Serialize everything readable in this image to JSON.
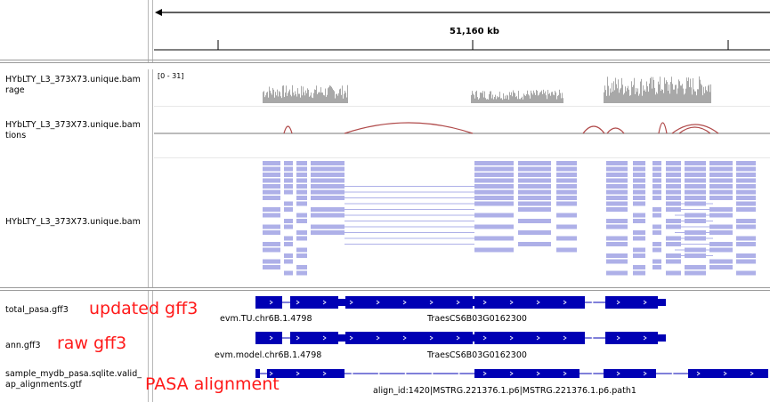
{
  "ruler": {
    "position_label": "51,160 kb"
  },
  "tracks": {
    "coverage": {
      "name_line1": "HYbLTY_L3_373X73.unique.bam",
      "name_line2": "rage",
      "range": "[0 - 31]"
    },
    "junctions": {
      "name_line1": "HYbLTY_L3_373X73.unique.bam",
      "name_line2": "tions"
    },
    "alignments": {
      "name_line1": "HYbLTY_L3_373X73.unique.bam"
    },
    "total_pasa": {
      "name": "total_pasa.gff3",
      "annotation": "updated gff3",
      "feature1": "evm.TU.chr6B.1.4798",
      "feature2": "TraesCS6B03G0162300"
    },
    "ann": {
      "name": "ann.gff3",
      "annotation": "raw gff3",
      "feature1": "evm.model.chr6B.1.4798",
      "feature2": "TraesCS6B03G0162300"
    },
    "sample_pasa": {
      "name_line1": "sample_mydb_pasa.sqlite.valid_",
      "name_line2": "ap_alignments.gtf",
      "annotation": "PASA alignment",
      "feature1": "align_id:1420|MSTRG.221376.1.p6|MSTRG.221376.1.p6.path1"
    }
  },
  "colors": {
    "coverage": "#a8a8a8",
    "junction": "#b04a4a",
    "read": "#aeb0e8",
    "feature": "#0000b4",
    "annotation": "#ff1a1a"
  }
}
